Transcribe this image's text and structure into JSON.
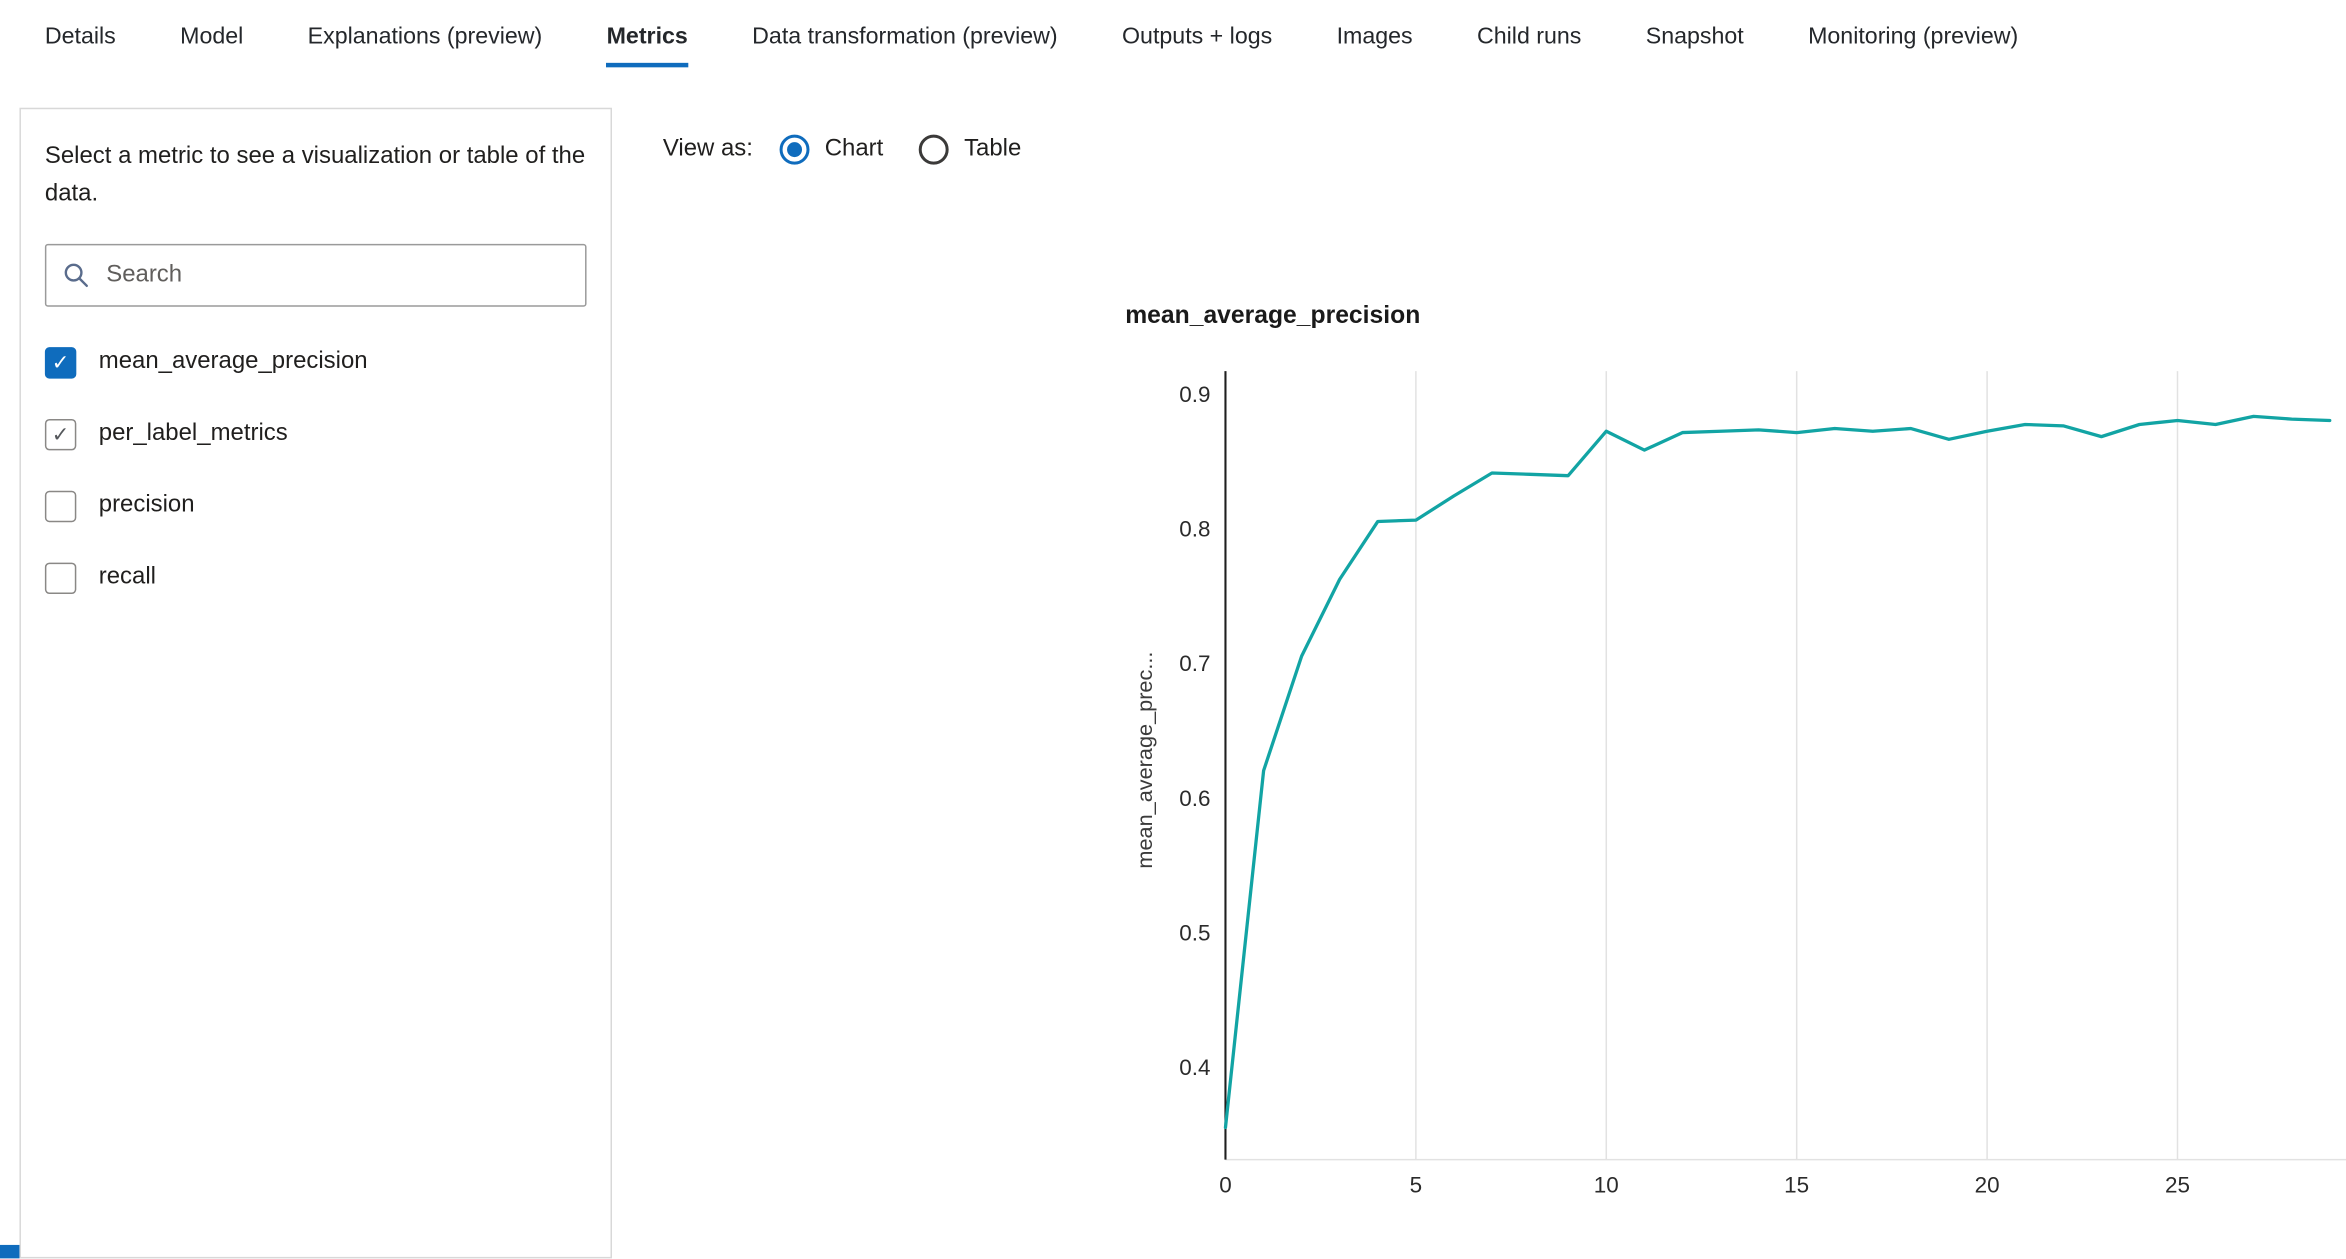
{
  "colors": {
    "accent": "#0f6cbd",
    "chart_line": "#12a4a4",
    "text": "#201f1e",
    "panel_border": "#d8d8d8"
  },
  "tabs": [
    {
      "label": "Details",
      "active": false
    },
    {
      "label": "Model",
      "active": false
    },
    {
      "label": "Explanations (preview)",
      "active": false
    },
    {
      "label": "Metrics",
      "active": true
    },
    {
      "label": "Data transformation (preview)",
      "active": false
    },
    {
      "label": "Outputs + logs",
      "active": false
    },
    {
      "label": "Images",
      "active": false
    },
    {
      "label": "Child runs",
      "active": false
    },
    {
      "label": "Snapshot",
      "active": false
    },
    {
      "label": "Monitoring (preview)",
      "active": false
    }
  ],
  "sidebar": {
    "description": "Select a metric to see a visualization or table of the data.",
    "search_placeholder": "Search",
    "metrics": [
      {
        "label": "mean_average_precision",
        "state": "checked-primary"
      },
      {
        "label": "per_label_metrics",
        "state": "checked-subtle"
      },
      {
        "label": "precision",
        "state": "unchecked"
      },
      {
        "label": "recall",
        "state": "unchecked"
      }
    ]
  },
  "viewbar": {
    "label": "View as:",
    "options": [
      {
        "label": "Chart",
        "selected": true
      },
      {
        "label": "Table",
        "selected": false
      }
    ]
  },
  "chart_data": {
    "type": "line",
    "title": "mean_average_precision",
    "ylabel": "mean_average_prec...",
    "xlabel": "",
    "xticks": [
      0,
      5,
      10,
      15,
      20,
      25
    ],
    "yticks": [
      0.4,
      0.5,
      0.6,
      0.7,
      0.8,
      0.9
    ],
    "xlim": [
      0,
      29
    ],
    "ylim": [
      0.33,
      0.93
    ],
    "grid": "vertical",
    "legend": "none",
    "line_color": "#12a4a4",
    "series": [
      {
        "name": "mean_average_precision",
        "x": [
          0,
          1,
          2,
          3,
          4,
          5,
          6,
          7,
          8,
          9,
          10,
          11,
          12,
          13,
          14,
          15,
          16,
          17,
          18,
          19,
          20,
          21,
          22,
          23,
          24,
          25,
          26,
          27,
          28,
          29
        ],
        "y": [
          0.355,
          0.62,
          0.705,
          0.762,
          0.805,
          0.806,
          0.824,
          0.841,
          0.84,
          0.839,
          0.872,
          0.858,
          0.871,
          0.872,
          0.873,
          0.871,
          0.874,
          0.872,
          0.874,
          0.866,
          0.872,
          0.877,
          0.876,
          0.868,
          0.877,
          0.88,
          0.877,
          0.883,
          0.881,
          0.88
        ]
      }
    ]
  }
}
